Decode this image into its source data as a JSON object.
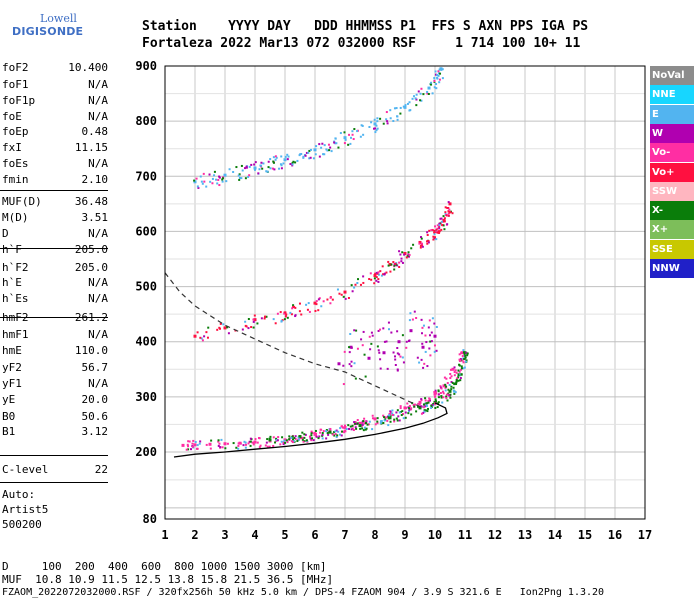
{
  "logo": {
    "line1": "Lowell",
    "line2": "DIGISONDE"
  },
  "header": {
    "labels": "Station    YYYY DAY   DDD HHMMSS P1  FFS S AXN PPS IGA PS",
    "values": "Fortaleza 2022 Mar13 072 032000 RSF     1 714 100 10+ 11"
  },
  "params": [
    {
      "k": "foF2",
      "v": "10.400"
    },
    {
      "k": "foF1",
      "v": "N/A"
    },
    {
      "k": "foF1p",
      "v": "N/A"
    },
    {
      "k": "foE",
      "v": "N/A"
    },
    {
      "k": "foEp",
      "v": "0.48"
    },
    {
      "k": "fxI",
      "v": "11.15"
    },
    {
      "k": "foEs",
      "v": "N/A"
    },
    {
      "k": "fmin",
      "v": "2.10"
    },
    {
      "k": "MUF(D)",
      "v": "36.48"
    },
    {
      "k": "M(D)",
      "v": "3.51"
    },
    {
      "k": "D",
      "v": "N/A"
    },
    {
      "k": "h`F",
      "v": "205.0"
    },
    {
      "k": "h`F2",
      "v": "205.0"
    },
    {
      "k": "h`E",
      "v": "N/A"
    },
    {
      "k": "h`Es",
      "v": "N/A"
    },
    {
      "k": "hmF2",
      "v": "261.2"
    },
    {
      "k": "hmF1",
      "v": "N/A"
    },
    {
      "k": "hmE",
      "v": "110.0"
    },
    {
      "k": "yF2",
      "v": "56.7"
    },
    {
      "k": "yF1",
      "v": "N/A"
    },
    {
      "k": "yE",
      "v": "20.0"
    },
    {
      "k": "B0",
      "v": "50.6"
    },
    {
      "k": "B1",
      "v": "3.12"
    },
    {
      "k": "C-level",
      "v": "22"
    }
  ],
  "auto": {
    "line1": "Auto:",
    "line2": "Artist5",
    "line3": "500200"
  },
  "legend": [
    {
      "label": "NoVal",
      "color": "#8c8c8c"
    },
    {
      "label": "NNE",
      "color": "#17d6ff"
    },
    {
      "label": "E",
      "color": "#52b4f0"
    },
    {
      "label": "W",
      "color": "#b000b0"
    },
    {
      "label": "Vo-",
      "color": "#ff2ea3"
    },
    {
      "label": "Vo+",
      "color": "#ff1040"
    },
    {
      "label": "SSW",
      "color": "#ffb6c0"
    },
    {
      "label": "X-",
      "color": "#0a7d0a"
    },
    {
      "label": "X+",
      "color": "#7dbe5a"
    },
    {
      "label": "SSE",
      "color": "#c8c800"
    },
    {
      "label": "NNW",
      "color": "#2020c8"
    }
  ],
  "footer": {
    "d_line": "D     100  200  400  600  800 1000 1500 3000 [km]",
    "muf_line": "MUF  10.8 10.9 11.5 12.5 13.8 15.8 21.5 36.5 [MHz]",
    "file_line": "FZAOM_2022072032000.RSF / 320fx256h 50 kHz 5.0 km / DPS-4 FZAOM 904 / 3.9 S 321.6 E   Ion2Png 1.3.20"
  },
  "chart_data": {
    "type": "scatter",
    "title": "",
    "xlabel": "",
    "ylabel": "",
    "xlim": [
      1,
      17
    ],
    "ylim": [
      80,
      900
    ],
    "x_ticks": [
      1,
      2,
      3,
      4,
      5,
      6,
      7,
      8,
      9,
      10,
      11,
      12,
      13,
      14,
      15,
      16,
      17
    ],
    "y_ticks": [
      80,
      200,
      300,
      400,
      500,
      600,
      700,
      800,
      900
    ],
    "grid": true,
    "series": [
      {
        "name": "Vo-",
        "color": "#ff2ea3",
        "desc": "O-trace 1st hop",
        "x": [
          1.6,
          2.0,
          2.5,
          3.0,
          3.5,
          4.0,
          4.5,
          5.0,
          5.5,
          6.0,
          6.5,
          7.0,
          7.5,
          8.0,
          8.5,
          9.0,
          9.5,
          10.0,
          10.3,
          10.6,
          10.9
        ],
        "y": [
          212,
          213,
          214,
          215,
          216,
          218,
          220,
          222,
          226,
          232,
          238,
          244,
          252,
          260,
          268,
          280,
          290,
          305,
          320,
          350,
          380
        ]
      },
      {
        "name": "X-",
        "color": "#0a7d0a",
        "desc": "X-trace 1st hop",
        "x": [
          4.5,
          5.5,
          6.5,
          7.5,
          8.5,
          9.5,
          10.0,
          10.5,
          10.8,
          11.0
        ],
        "y": [
          222,
          228,
          236,
          248,
          262,
          280,
          290,
          310,
          340,
          380
        ]
      },
      {
        "name": "Vo+",
        "color": "#ff1040",
        "desc": "O-trace 2nd hop",
        "x": [
          2.0,
          3.0,
          4.0,
          5.0,
          6.0,
          7.0,
          8.0,
          8.5,
          9.0,
          9.5,
          10.0,
          10.3,
          10.5
        ],
        "y": [
          410,
          425,
          440,
          452,
          470,
          490,
          520,
          540,
          560,
          580,
          600,
          620,
          650
        ]
      },
      {
        "name": "E",
        "color": "#52b4f0",
        "desc": "3rd hop",
        "x": [
          2.0,
          3.0,
          4.0,
          5.0,
          6.0,
          7.0,
          8.0,
          9.0,
          9.8,
          10.2
        ],
        "y": [
          690,
          702,
          715,
          730,
          748,
          770,
          795,
          825,
          860,
          895
        ]
      },
      {
        "name": "W",
        "color": "#b000b0",
        "desc": "oblique echoes",
        "x": [
          6.8,
          7.2,
          7.8,
          8.3,
          8.8,
          9.2,
          9.6,
          10.0
        ],
        "y": [
          360,
          390,
          370,
          380,
          400,
          420,
          390,
          410
        ]
      }
    ],
    "profile_line": {
      "desc": "solid profile",
      "x": [
        1.3,
        2,
        3,
        4,
        5,
        6,
        7,
        8,
        9,
        9.6,
        10.1,
        10.4,
        10.35,
        10.0
      ],
      "y": [
        191,
        196,
        200,
        205,
        210,
        216,
        223,
        232,
        243,
        252,
        262,
        270,
        280,
        289
      ]
    },
    "dashed_line": {
      "desc": "dashed MUF curve",
      "x": [
        1,
        1.5,
        2,
        3,
        4,
        5,
        6,
        7,
        8,
        9,
        9.6
      ],
      "y": [
        525,
        490,
        465,
        430,
        405,
        380,
        360,
        345,
        320,
        295,
        280
      ]
    }
  }
}
